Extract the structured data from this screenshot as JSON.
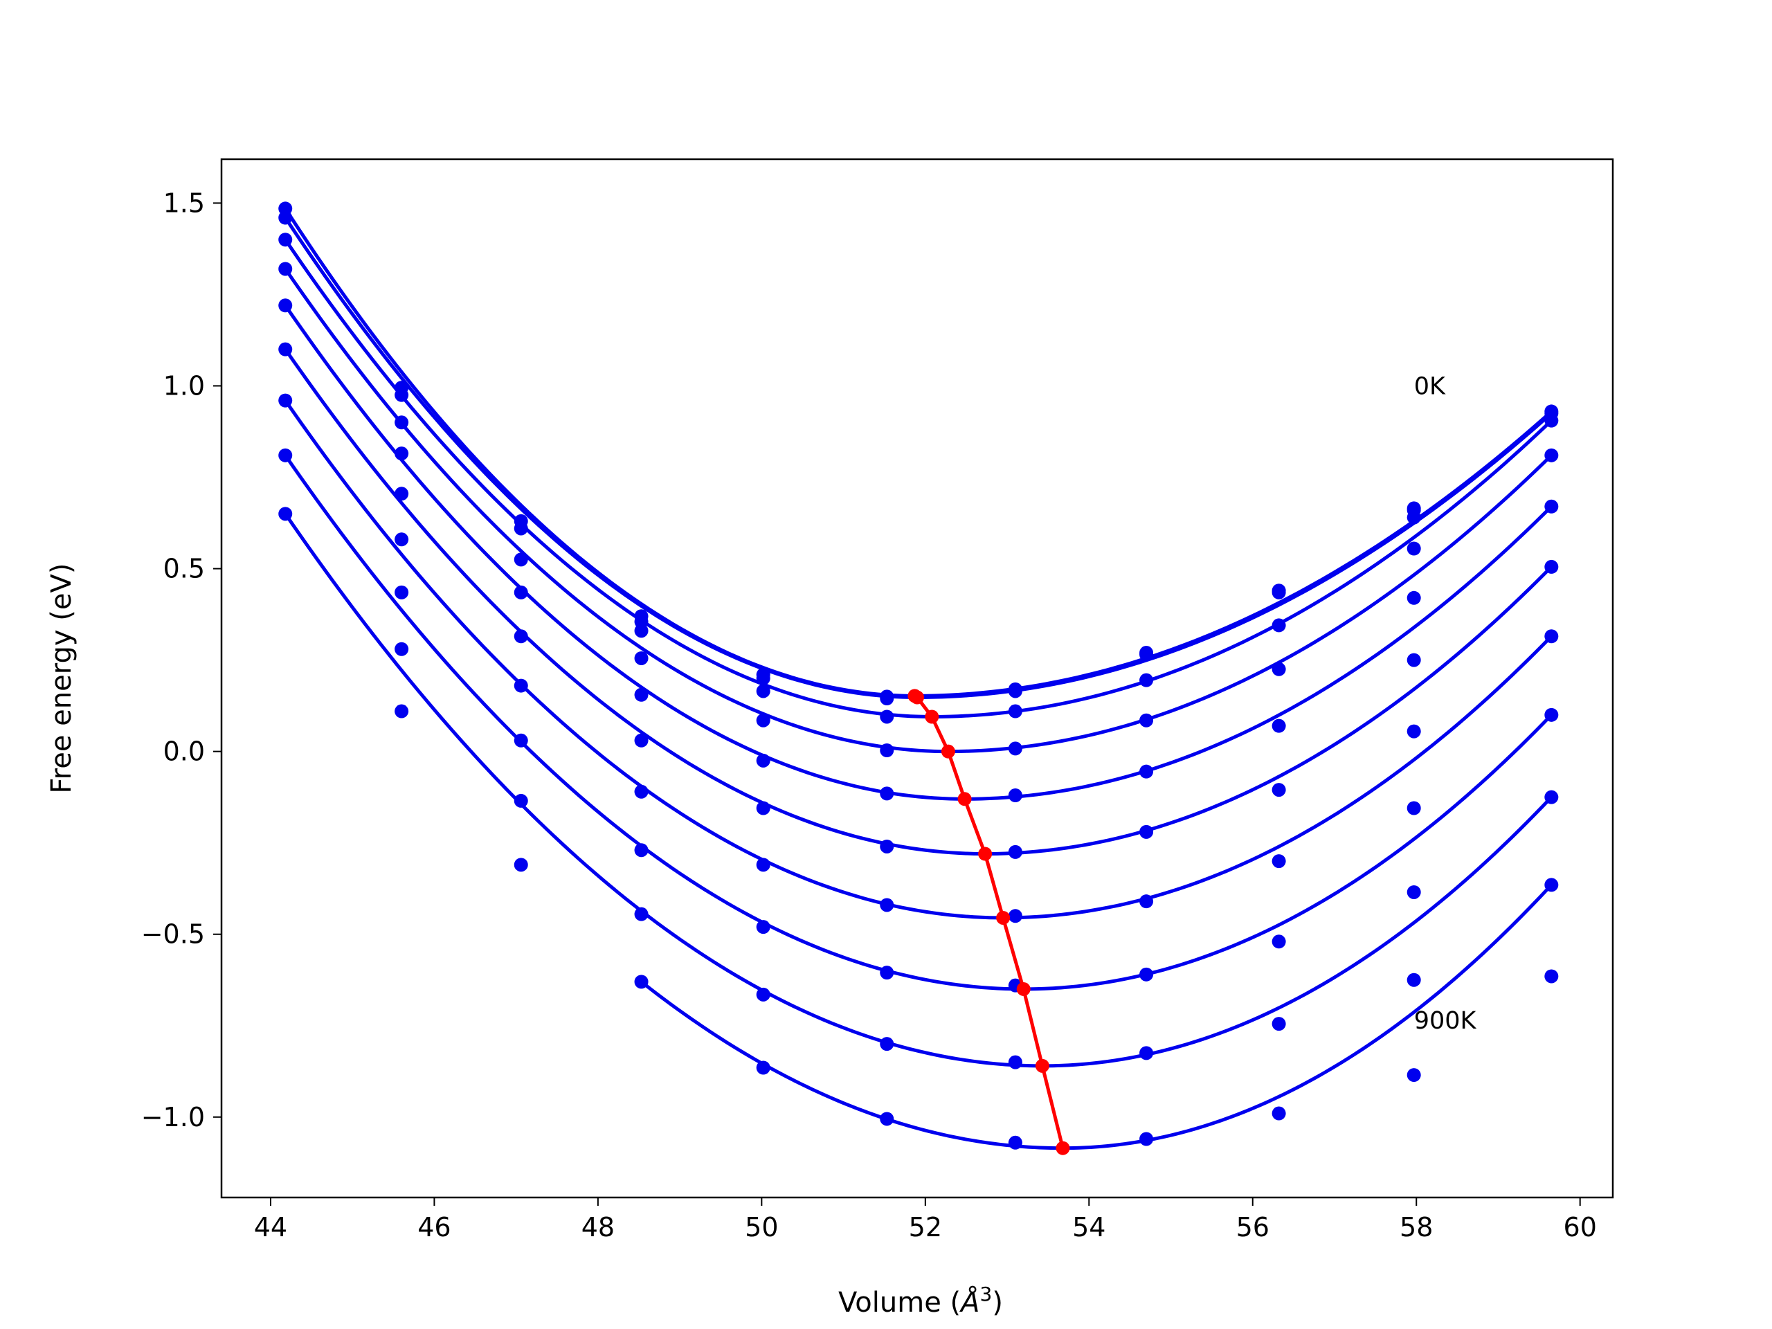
{
  "chart_data": {
    "type": "line",
    "title": "",
    "xlabel": "Volume (",
    "xlabel_symbol": "Å",
    "xlabel_exp": "3",
    "xlabel_close": ")",
    "ylabel": "Free energy (eV)",
    "xlim": [
      43.4,
      60.4
    ],
    "ylim": [
      -1.22,
      1.62
    ],
    "xticks": [
      44,
      46,
      48,
      50,
      52,
      54,
      56,
      58,
      60
    ],
    "xtick_labels": [
      "44",
      "46",
      "48",
      "50",
      "52",
      "54",
      "56",
      "58",
      "60"
    ],
    "yticks": [
      -1.0,
      -0.5,
      0.0,
      0.5,
      1.0,
      1.5
    ],
    "ytick_labels": [
      "−1.0",
      "−0.5",
      "0.0",
      "0.5",
      "1.0",
      "1.5"
    ],
    "grid": false,
    "legend": "none",
    "line_color": "#0000ee",
    "min_color": "#ff0000",
    "volumes": [
      44.18,
      45.6,
      47.06,
      48.53,
      50.02,
      51.53,
      53.1,
      54.7,
      56.32,
      57.97,
      59.65
    ],
    "series": [
      {
        "values": [
          1.485,
          0.995,
          0.63,
          0.37,
          0.21,
          0.15,
          0.17,
          0.27,
          0.44,
          0.665,
          0.93
        ],
        "min_v": 51.87,
        "min_e": 0.152
      },
      {
        "values": [
          1.46,
          0.975,
          0.61,
          0.355,
          0.2,
          0.145,
          0.165,
          0.265,
          0.435,
          0.66,
          0.925
        ],
        "min_v": 51.9,
        "min_e": 0.148
      },
      {
        "values": [
          1.4,
          0.9,
          0.525,
          0.33,
          0.165,
          0.095,
          0.11,
          0.195,
          0.345,
          0.64,
          0.905
        ],
        "min_v": 52.08,
        "min_e": 0.095
      },
      {
        "values": [
          1.32,
          0.815,
          0.435,
          0.255,
          0.085,
          0.003,
          0.008,
          0.085,
          0.225,
          0.555,
          0.81
        ],
        "min_v": 52.28,
        "min_e": 0.0
      },
      {
        "values": [
          1.22,
          0.705,
          0.315,
          0.155,
          -0.025,
          -0.115,
          -0.12,
          -0.055,
          0.07,
          0.42,
          0.67
        ],
        "min_v": 52.48,
        "min_e": -0.13
      },
      {
        "values": [
          1.1,
          0.58,
          0.18,
          0.03,
          -0.155,
          -0.26,
          -0.275,
          -0.22,
          -0.105,
          0.25,
          0.505
        ],
        "min_v": 52.73,
        "min_e": -0.28
      },
      {
        "values": [
          0.96,
          0.435,
          0.03,
          -0.11,
          -0.31,
          -0.42,
          -0.45,
          -0.41,
          -0.3,
          0.055,
          0.315
        ],
        "min_v": 52.95,
        "min_e": -0.455
      },
      {
        "values": [
          0.81,
          0.28,
          -0.135,
          -0.27,
          -0.48,
          -0.605,
          -0.64,
          -0.61,
          -0.52,
          -0.155,
          0.1
        ],
        "min_v": 53.2,
        "min_e": -0.65
      },
      {
        "values": [
          0.65,
          0.11,
          -0.31,
          -0.445,
          -0.665,
          -0.8,
          -0.85,
          -0.825,
          -0.745,
          -0.385,
          -0.125
        ],
        "min_v": 53.43,
        "min_e": -0.86
      },
      {
        "values": [
          null,
          null,
          null,
          -0.63,
          -0.865,
          -1.005,
          -1.07,
          -1.06,
          -0.99,
          -0.625,
          -0.365
        ],
        "min_v": 53.68,
        "min_e": -1.085
      }
    ],
    "outliers": [
      {
        "x": 57.97,
        "y": -0.885
      },
      {
        "x": 59.65,
        "y": -0.615
      }
    ],
    "annotations": [
      {
        "text": "0K",
        "x": 57.97,
        "y": 1.0
      },
      {
        "text": "900K",
        "x": 57.97,
        "y": -0.735
      }
    ]
  }
}
